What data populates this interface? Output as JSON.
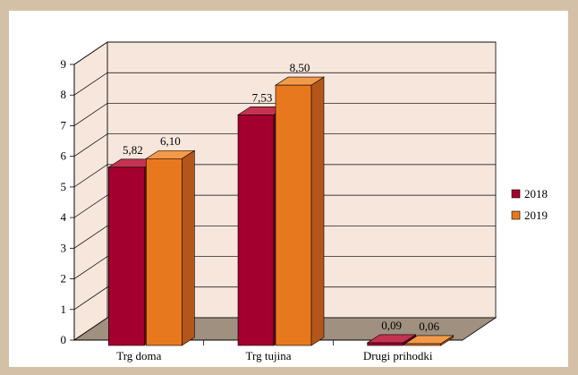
{
  "chart_data": {
    "type": "bar",
    "categories": [
      "Trg doma",
      "Trg tujina",
      "Drugi prihodki"
    ],
    "series": [
      {
        "name": "2018",
        "values": [
          5.82,
          7.53,
          0.09
        ],
        "labels": [
          "5,82",
          "7,53",
          "0,09"
        ]
      },
      {
        "name": "2019",
        "values": [
          6.1,
          8.5,
          0.06
        ],
        "labels": [
          "6,10",
          "8,50",
          "0,06"
        ]
      }
    ],
    "ylim": [
      0,
      9
    ],
    "yticks": [
      "0",
      "1",
      "2",
      "3",
      "4",
      "5",
      "6",
      "7",
      "8",
      "9"
    ],
    "grid": true,
    "legend_position": "right",
    "colors": {
      "page_background": "#d3c0a6",
      "plot_wall": "#f6e6dc",
      "floor": "#a09080",
      "series_2018_front": "#a3002f",
      "series_2018_side": "#6a0020",
      "series_2018_top": "#c43350",
      "series_2019_front": "#e8781e",
      "series_2019_side": "#b4561a",
      "series_2019_top": "#f39a4a"
    }
  }
}
